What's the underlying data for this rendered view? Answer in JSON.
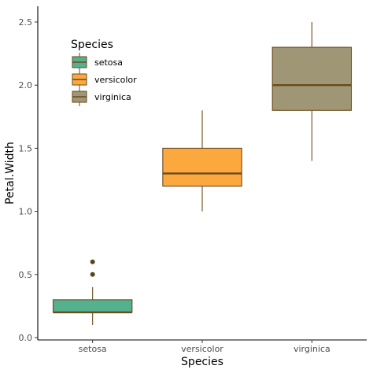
{
  "chart_data": {
    "type": "boxplot",
    "xlabel": "Species",
    "ylabel": "Petal.Width",
    "categories": [
      "setosa",
      "versicolor",
      "virginica"
    ],
    "ylim": [
      0,
      2.6
    ],
    "yticks": [
      "0.0",
      "0.5",
      "1.0",
      "1.5",
      "2.0",
      "2.5"
    ],
    "grid": false,
    "legend": {
      "title": "Species",
      "position": "top-left",
      "entries": [
        "setosa",
        "versicolor",
        "virginica"
      ]
    },
    "boxes": [
      {
        "category": "setosa",
        "whisker_low": 0.1,
        "q1": 0.2,
        "median": 0.2,
        "q3": 0.3,
        "whisker_high": 0.4,
        "outliers": [
          0.5,
          0.6
        ],
        "fill": "#55B08E"
      },
      {
        "category": "versicolor",
        "whisker_low": 1.0,
        "q1": 1.2,
        "median": 1.3,
        "q3": 1.5,
        "whisker_high": 1.8,
        "outliers": [],
        "fill": "#FBA93F"
      },
      {
        "category": "virginica",
        "whisker_low": 1.4,
        "q1": 1.8,
        "median": 2.0,
        "q3": 2.3,
        "whisker_high": 2.5,
        "outliers": [],
        "fill": "#9F9676"
      }
    ],
    "line_color": "#6B4A1E",
    "outlier_color": "#5A4220"
  }
}
